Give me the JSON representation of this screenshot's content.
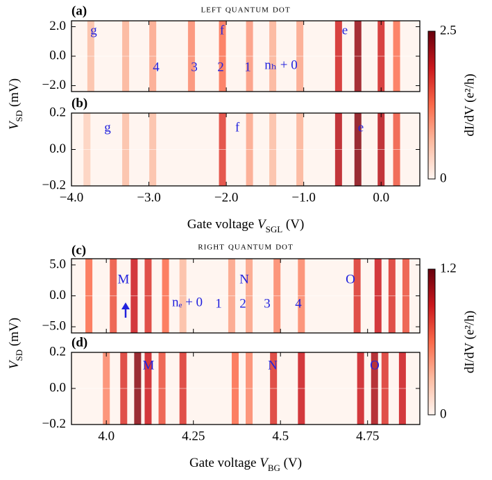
{
  "chart_data": [
    {
      "type": "heatmap",
      "panel": "(a)",
      "title": "left quantum dot",
      "xlim": [
        -4.0,
        0.5
      ],
      "ylim": [
        -2.4,
        2.4
      ],
      "yticks": [
        {
          "value": -2,
          "label": "−2.0"
        },
        {
          "value": 0,
          "label": "0.0"
        },
        {
          "value": 2,
          "label": "2.0"
        }
      ],
      "annotations": [
        "g",
        "f",
        "e",
        "4",
        "3",
        "2",
        "1",
        "nₕ + 0"
      ],
      "x": [
        -3.75,
        -3.3,
        -2.95,
        -2.45,
        -2.05,
        -1.7,
        -1.4,
        -1.05,
        -0.55,
        -0.3,
        0.0,
        0.2
      ],
      "values": [
        0.6,
        0.7,
        0.8,
        1.0,
        1.2,
        0.9,
        0.7,
        0.8,
        1.8,
        2.2,
        1.8,
        1.2
      ]
    },
    {
      "type": "heatmap",
      "panel": "(b)",
      "xlim": [
        -4.0,
        0.5
      ],
      "xticks": [
        {
          "value": -4,
          "label": "−4.0"
        },
        {
          "value": -3,
          "label": "−3.0"
        },
        {
          "value": -2,
          "label": "−2.0"
        },
        {
          "value": -1,
          "label": "−1.0"
        },
        {
          "value": 0,
          "label": "0.0"
        }
      ],
      "xlabel": {
        "text": "Gate voltage ",
        "symbol": "V",
        "sub": "SGL",
        "unit": " (V)"
      },
      "ylabel": {
        "symbol": "V",
        "sub": "SD",
        "unit": " (mV)"
      },
      "ylim": [
        -0.2,
        0.2
      ],
      "yticks": [
        {
          "value": -0.2,
          "label": "−0.2"
        },
        {
          "value": 0,
          "label": "0.0"
        },
        0.2
      ],
      "annotations": [
        "g",
        "f",
        "e"
      ],
      "x": [
        -3.8,
        -3.3,
        -2.95,
        -2.05,
        -1.7,
        -1.4,
        -1.05,
        -0.55,
        -0.3,
        0.0,
        0.2
      ],
      "values": [
        0.4,
        0.6,
        0.6,
        1.6,
        0.8,
        0.6,
        0.7,
        2.0,
        2.3,
        2.0,
        1.4
      ]
    },
    {
      "type": "heatmap",
      "panel": "(c)",
      "title": "right quantum dot",
      "xlim": [
        3.9,
        4.9
      ],
      "ylim": [
        -6,
        6
      ],
      "yticks": [
        {
          "value": -5,
          "label": "−5.0"
        },
        {
          "value": 0,
          "label": "0.0"
        },
        {
          "value": 5,
          "label": "5.0"
        }
      ],
      "annotations": [
        "M",
        "N",
        "O",
        "nₑ + 0",
        "1",
        "2",
        "3",
        "4"
      ],
      "x": [
        3.95,
        4.02,
        4.08,
        4.12,
        4.17,
        4.22,
        4.36,
        4.41,
        4.49,
        4.56,
        4.72,
        4.78,
        4.82,
        4.86
      ],
      "values": [
        0.6,
        0.7,
        0.9,
        0.8,
        0.6,
        0.3,
        0.4,
        0.4,
        0.5,
        0.5,
        0.8,
        0.9,
        0.8,
        0.7
      ]
    },
    {
      "type": "heatmap",
      "panel": "(d)",
      "xlim": [
        3.9,
        4.9
      ],
      "xticks": [
        {
          "value": 4,
          "label": "4.0"
        },
        4.25,
        {
          "value": 4.5,
          "label": "4.5"
        },
        4.75
      ],
      "xlabel": {
        "text": "Gate voltage ",
        "symbol": "V",
        "sub": "BG",
        "unit": " (V)"
      },
      "ylabel": {
        "symbol": "V",
        "sub": "SD",
        "unit": " (mV)"
      },
      "ylim": [
        -0.2,
        0.2
      ],
      "yticks": [
        {
          "value": -0.2,
          "label": "−0.2"
        },
        {
          "value": 0,
          "label": "0.0"
        },
        0.2
      ],
      "annotations": [
        "M",
        "N",
        "O"
      ],
      "x": [
        4.0,
        4.05,
        4.09,
        4.12,
        4.16,
        4.22,
        4.37,
        4.41,
        4.48,
        4.56,
        4.73,
        4.77,
        4.8,
        4.85
      ],
      "values": [
        0.5,
        0.8,
        1.1,
        0.9,
        0.7,
        0.8,
        0.6,
        0.5,
        0.8,
        0.9,
        0.9,
        1.0,
        0.8,
        0.9
      ]
    },
    {
      "type": "colorbar",
      "label": "dI/dV (e²/h)",
      "zlim": [
        0,
        2.5
      ],
      "zticks": [
        0,
        2.5
      ]
    },
    {
      "type": "colorbar",
      "label": "dI/dV (e²/h)",
      "zlim": [
        0,
        1.2
      ],
      "zticks": [
        0,
        1.2
      ]
    }
  ]
}
